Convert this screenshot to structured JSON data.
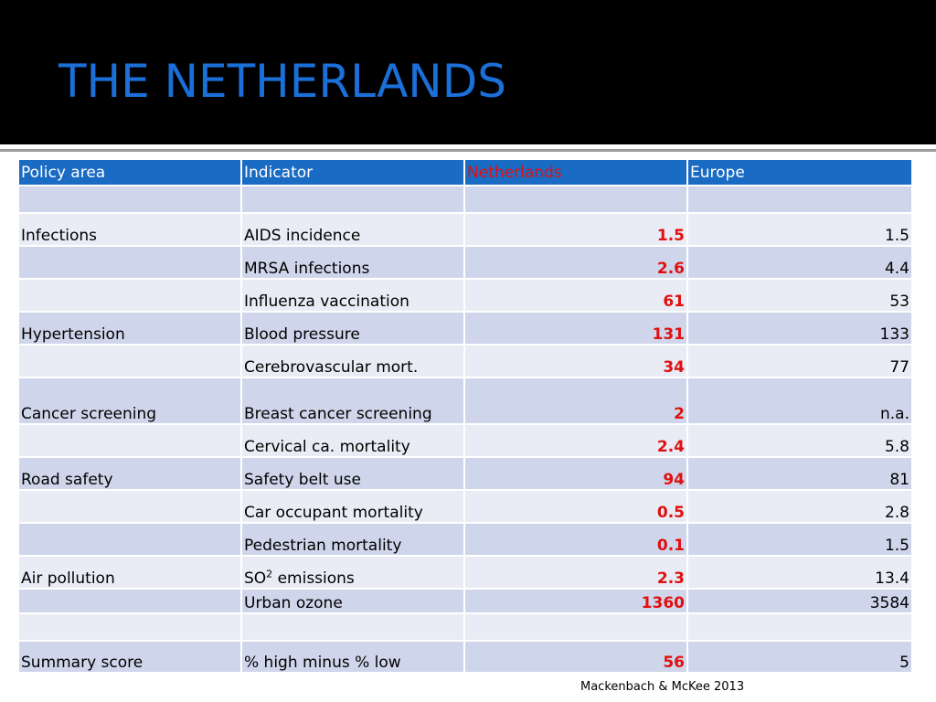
{
  "title": "THE NETHERLANDS",
  "colors": {
    "title": "#1a6fd9",
    "header_fill": "#1a6bc4",
    "highlight_red": "#e01010",
    "row_dark": "#cfd6eb",
    "row_light": "#e9ecf5"
  },
  "table": {
    "headers": {
      "policy": "Policy area",
      "indicator": "Indicator",
      "netherlands": "Netherlands",
      "europe": "Europe"
    },
    "rows": [
      {
        "policy": "",
        "indicator": "",
        "netherlands": "",
        "europe": ""
      },
      {
        "policy": "Infections",
        "indicator": "AIDS incidence",
        "netherlands": "1.5",
        "europe": "1.5"
      },
      {
        "policy": "",
        "indicator": "MRSA infections",
        "netherlands": "2.6",
        "europe": "4.4"
      },
      {
        "policy": "",
        "indicator": "Influenza vaccination",
        "netherlands": "61",
        "europe": "53"
      },
      {
        "policy": "Hypertension",
        "indicator": "Blood pressure",
        "netherlands": "131",
        "europe": "133"
      },
      {
        "policy": "",
        "indicator": "Cerebrovascular mort.",
        "netherlands": "34",
        "europe": "77"
      },
      {
        "policy": "Cancer screening",
        "indicator": "Breast cancer screening",
        "netherlands": "2",
        "europe": "n.a."
      },
      {
        "policy": "",
        "indicator": "Cervical ca. mortality",
        "netherlands": "2.4",
        "europe": "5.8"
      },
      {
        "policy": "Road safety",
        "indicator": "Safety belt use",
        "netherlands": "94",
        "europe": "81"
      },
      {
        "policy": "",
        "indicator": "Car occupant mortality",
        "netherlands": "0.5",
        "europe": "2.8"
      },
      {
        "policy": "",
        "indicator": "Pedestrian mortality",
        "netherlands": "0.1",
        "europe": "1.5"
      },
      {
        "policy": "Air pollution",
        "indicator_base": "SO",
        "indicator_sup": "2",
        "indicator_rest": " emissions",
        "netherlands": "2.3",
        "europe": "13.4"
      },
      {
        "policy": "",
        "indicator": "Urban ozone",
        "netherlands": "1360",
        "europe": "3584"
      },
      {
        "policy": "",
        "indicator": "",
        "netherlands": "",
        "europe": ""
      },
      {
        "policy": "Summary score",
        "indicator": "% high minus % low",
        "netherlands": "56",
        "europe": "5"
      }
    ]
  },
  "citation": "Mackenbach & McKee 2013"
}
